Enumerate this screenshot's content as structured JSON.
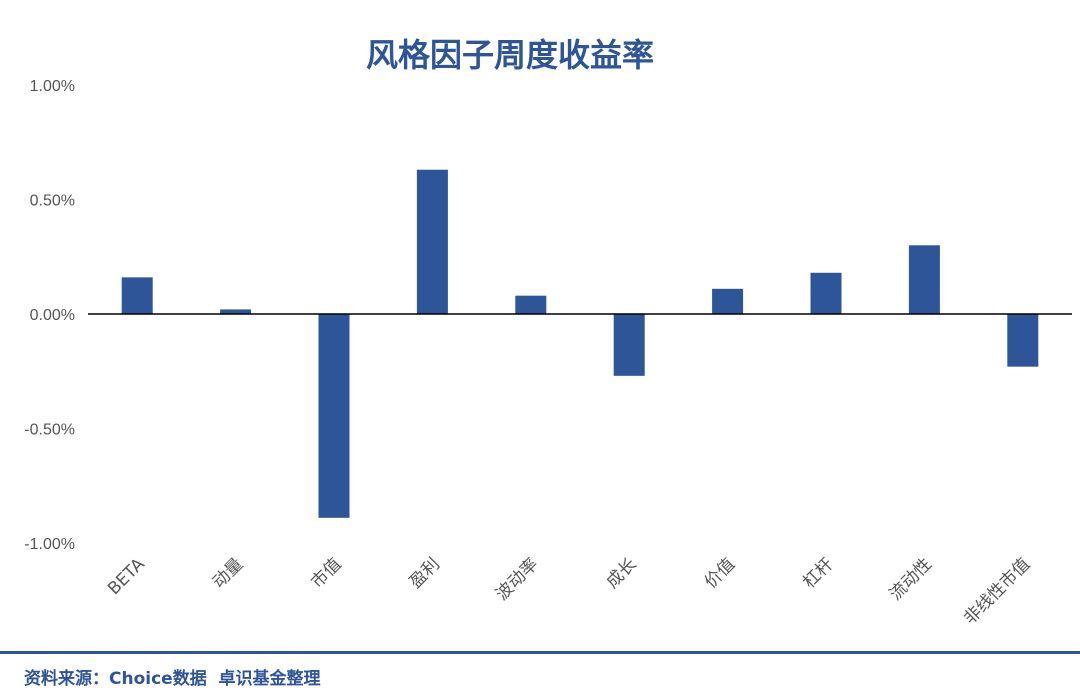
{
  "chart_data": {
    "type": "bar",
    "title": "风格因子周度收益率",
    "categories": [
      "BETA",
      "动量",
      "市值",
      "盈利",
      "波动率",
      "成长",
      "价值",
      "杠杆",
      "流动性",
      "非线性市值"
    ],
    "values": [
      0.16,
      0.02,
      -0.89,
      0.63,
      0.08,
      -0.27,
      0.11,
      0.18,
      0.3,
      -0.23
    ],
    "unit": "%",
    "ylim": [
      -1.0,
      1.0
    ],
    "yticks": [
      "1.00%",
      "0.50%",
      "0.00%",
      "-0.50%",
      "-1.00%"
    ],
    "ytick_values": [
      1.0,
      0.5,
      0.0,
      -0.5,
      -1.0
    ],
    "grid": false,
    "legend": "none",
    "bar_color": "#2e5597"
  },
  "footer": {
    "source": "资料来源：Choice数据  卓识基金整理"
  }
}
